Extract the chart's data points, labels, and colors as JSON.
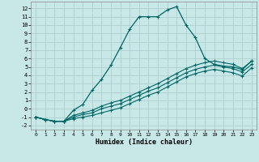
{
  "xlabel": "Humidex (Indice chaleur)",
  "background_color": "#c8e8e8",
  "grid_color": "#b0d0d0",
  "line_color": "#006666",
  "xlim": [
    -0.5,
    23.5
  ],
  "ylim": [
    -2.5,
    12.8
  ],
  "xticks": [
    0,
    1,
    2,
    3,
    4,
    5,
    6,
    7,
    8,
    9,
    10,
    11,
    12,
    13,
    14,
    15,
    16,
    17,
    18,
    19,
    20,
    21,
    22,
    23
  ],
  "yticks": [
    -2,
    -1,
    0,
    1,
    2,
    3,
    4,
    5,
    6,
    7,
    8,
    9,
    10,
    11,
    12
  ],
  "line1_x": [
    0,
    1,
    2,
    3,
    4,
    5,
    6,
    7,
    8,
    9,
    10,
    11,
    12,
    13,
    14,
    15,
    16,
    17,
    18,
    19,
    20,
    21,
    22,
    23
  ],
  "line1_y": [
    -1.0,
    -1.3,
    -1.5,
    -1.5,
    -0.2,
    0.5,
    2.2,
    3.5,
    5.2,
    7.3,
    9.5,
    11.0,
    11.0,
    11.0,
    11.8,
    12.2,
    10.0,
    8.5,
    6.0,
    5.3,
    5.1,
    5.0,
    4.7,
    5.7
  ],
  "line2_x": [
    0,
    1,
    2,
    3,
    4,
    5,
    6,
    7,
    8,
    9,
    10,
    11,
    12,
    13,
    14,
    15,
    16,
    17,
    18,
    19,
    20,
    21,
    22,
    23
  ],
  "line2_y": [
    -1.0,
    -1.3,
    -1.5,
    -1.5,
    -0.8,
    -0.5,
    -0.2,
    0.3,
    0.7,
    1.0,
    1.5,
    2.0,
    2.5,
    3.0,
    3.6,
    4.2,
    4.8,
    5.2,
    5.5,
    5.7,
    5.5,
    5.3,
    4.8,
    5.7
  ],
  "line3_x": [
    0,
    1,
    2,
    3,
    4,
    5,
    6,
    7,
    8,
    9,
    10,
    11,
    12,
    13,
    14,
    15,
    16,
    17,
    18,
    19,
    20,
    21,
    22,
    23
  ],
  "line3_y": [
    -1.0,
    -1.3,
    -1.5,
    -1.5,
    -1.0,
    -0.7,
    -0.5,
    0.0,
    0.3,
    0.6,
    1.1,
    1.6,
    2.1,
    2.5,
    3.1,
    3.7,
    4.3,
    4.7,
    5.0,
    5.2,
    5.0,
    4.8,
    4.4,
    5.3
  ],
  "line4_x": [
    0,
    1,
    2,
    3,
    4,
    5,
    6,
    7,
    8,
    9,
    10,
    11,
    12,
    13,
    14,
    15,
    16,
    17,
    18,
    19,
    20,
    21,
    22,
    23
  ],
  "line4_y": [
    -1.0,
    -1.3,
    -1.5,
    -1.5,
    -1.2,
    -1.0,
    -0.8,
    -0.5,
    -0.2,
    0.1,
    0.6,
    1.1,
    1.6,
    2.0,
    2.6,
    3.2,
    3.8,
    4.2,
    4.5,
    4.7,
    4.5,
    4.3,
    3.9,
    4.9
  ]
}
